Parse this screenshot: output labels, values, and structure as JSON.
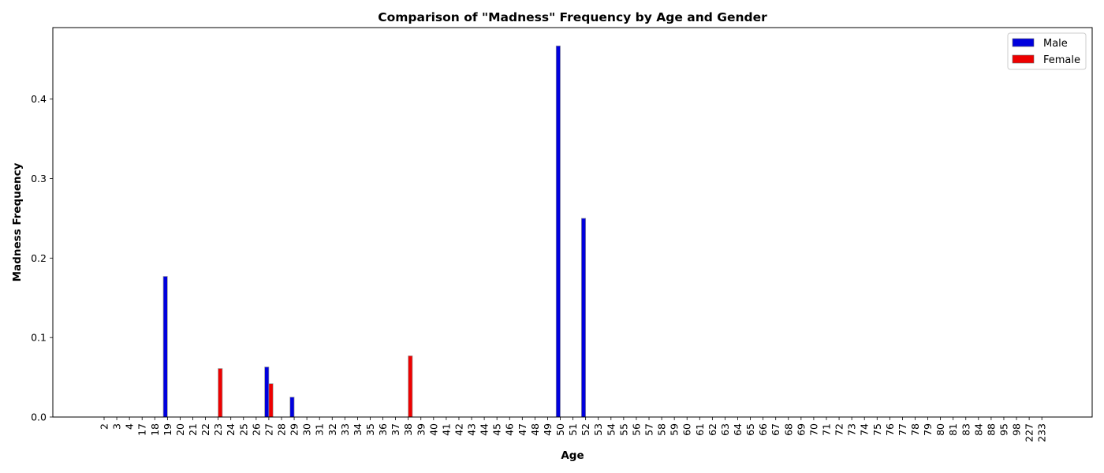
{
  "chart_data": {
    "type": "bar",
    "title": "Comparison of \"Madness\" Frequency by Age and Gender",
    "xlabel": "Age",
    "ylabel": "Madness Frequency",
    "ylim": [
      0,
      0.49
    ],
    "yticks": [
      0.0,
      0.1,
      0.2,
      0.3,
      0.4
    ],
    "ytick_labels": [
      "0.0",
      "0.1",
      "0.2",
      "0.3",
      "0.4"
    ],
    "grid": false,
    "legend_position": "top-right",
    "categories": [
      "2",
      "3",
      "4",
      "17",
      "18",
      "19",
      "20",
      "21",
      "22",
      "23",
      "24",
      "25",
      "26",
      "27",
      "28",
      "29",
      "30",
      "31",
      "32",
      "33",
      "34",
      "35",
      "36",
      "37",
      "38",
      "39",
      "40",
      "41",
      "42",
      "43",
      "44",
      "45",
      "46",
      "47",
      "48",
      "49",
      "50",
      "51",
      "52",
      "53",
      "54",
      "55",
      "56",
      "57",
      "58",
      "59",
      "60",
      "61",
      "62",
      "63",
      "64",
      "65",
      "66",
      "67",
      "68",
      "69",
      "70",
      "71",
      "72",
      "73",
      "74",
      "75",
      "76",
      "77",
      "78",
      "79",
      "80",
      "81",
      "83",
      "84",
      "88",
      "95",
      "98",
      "227",
      "233"
    ],
    "series": [
      {
        "name": "Male",
        "color": "#0000dd",
        "values": [
          0,
          0,
          0,
          0,
          0,
          0.177,
          0,
          0,
          0,
          0,
          0,
          0,
          0,
          0.063,
          0,
          0.025,
          0,
          0,
          0,
          0,
          0,
          0,
          0,
          0,
          0,
          0,
          0,
          0,
          0,
          0,
          0,
          0,
          0,
          0,
          0,
          0,
          0.467,
          0,
          0.25,
          0,
          0,
          0,
          0,
          0,
          0,
          0,
          0,
          0,
          0,
          0,
          0,
          0,
          0,
          0,
          0,
          0,
          0,
          0,
          0,
          0,
          0,
          0,
          0,
          0,
          0,
          0,
          0,
          0,
          0,
          0,
          0,
          0,
          0,
          0,
          0
        ]
      },
      {
        "name": "Female",
        "color": "#ee0000",
        "values": [
          0,
          0,
          0,
          0,
          0,
          0,
          0,
          0,
          0,
          0.061,
          0,
          0,
          0,
          0.042,
          0,
          0,
          0,
          0,
          0,
          0,
          0,
          0,
          0,
          0,
          0.077,
          0,
          0,
          0,
          0,
          0,
          0,
          0,
          0,
          0,
          0,
          0,
          0,
          0,
          0,
          0,
          0,
          0,
          0,
          0,
          0,
          0,
          0,
          0,
          0,
          0,
          0,
          0,
          0,
          0,
          0,
          0,
          0,
          0,
          0,
          0,
          0,
          0,
          0,
          0,
          0,
          0,
          0,
          0,
          0,
          0,
          0,
          0,
          0,
          0,
          0
        ]
      }
    ]
  }
}
